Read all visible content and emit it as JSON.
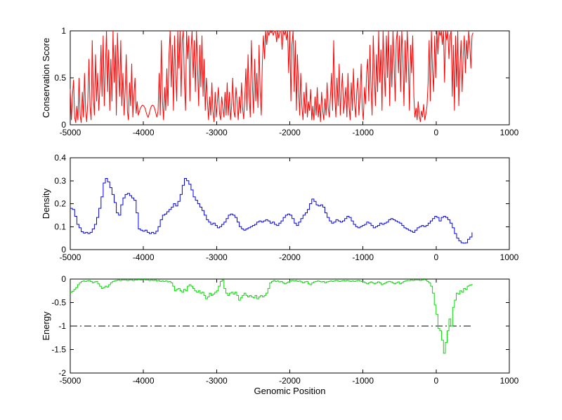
{
  "figure": {
    "background": "#ffffff",
    "xlabel": "Genomic Position",
    "x_range": [
      -5000,
      1000
    ],
    "data_x_end": 505
  },
  "chart_data": [
    {
      "type": "line",
      "name": "conservation",
      "ylabel": "Conservation Score",
      "xlabel": "",
      "xlim": [
        -5000,
        1000
      ],
      "ylim": [
        0,
        1
      ],
      "xticks": [
        -5000,
        -4000,
        -3000,
        -2000,
        -1000,
        0,
        1000
      ],
      "yticks": [
        0,
        0.5,
        1
      ],
      "line_color": "#ff0000",
      "step": false,
      "grid": false,
      "legend": null,
      "series": {
        "name": "conservation-score",
        "x_start": -5000,
        "x_step": 15,
        "y_scale": 0.01,
        "values": [
          38,
          5,
          30,
          48,
          8,
          2,
          20,
          5,
          50,
          10,
          2,
          35,
          8,
          55,
          15,
          3,
          25,
          70,
          20,
          5,
          90,
          30,
          10,
          75,
          25,
          55,
          15,
          40,
          85,
          30,
          95,
          20,
          60,
          100,
          35,
          80,
          15,
          70,
          25,
          100,
          45,
          85,
          10,
          98,
          60,
          30,
          90,
          20,
          55,
          10,
          35,
          75,
          15,
          5,
          45,
          20,
          65,
          8,
          30,
          50,
          12,
          25,
          10,
          14,
          18,
          20,
          21,
          20,
          18,
          14,
          10,
          8,
          12,
          17,
          20,
          21,
          20,
          17,
          12,
          8,
          15,
          55,
          10,
          90,
          25,
          5,
          40,
          15,
          60,
          20,
          75,
          100,
          40,
          85,
          15,
          95,
          55,
          25,
          100,
          60,
          100,
          30,
          90,
          100,
          45,
          15,
          100,
          70,
          95,
          25,
          80,
          100,
          50,
          90,
          35,
          100,
          60,
          20,
          85,
          40,
          95,
          30,
          70,
          15,
          50,
          25,
          5,
          30,
          10,
          45,
          15,
          3,
          35,
          8,
          25,
          40,
          12,
          5,
          30,
          18,
          8,
          35,
          10,
          45,
          10,
          35,
          5,
          20,
          50,
          15,
          8,
          40,
          25,
          5,
          30,
          12,
          45,
          18,
          6,
          28,
          60,
          15,
          75,
          30,
          8,
          90,
          40,
          12,
          70,
          25,
          55,
          18,
          85,
          35,
          10,
          65,
          95,
          70,
          100,
          85,
          100,
          95,
          100,
          98,
          100,
          95,
          100,
          100,
          88,
          100,
          92,
          100,
          100,
          80,
          100,
          96,
          100,
          90,
          100,
          55,
          100,
          25,
          85,
          100,
          35,
          90,
          15,
          75,
          40,
          10,
          55,
          20,
          5,
          35,
          12,
          45,
          8,
          25,
          15,
          38,
          5,
          20,
          5,
          30,
          10,
          40,
          8,
          22,
          3,
          35,
          15,
          5,
          28,
          10,
          45,
          18,
          8,
          30,
          55,
          15,
          90,
          30,
          8,
          50,
          20,
          65,
          10,
          35,
          55,
          12,
          25,
          40,
          8,
          55,
          20,
          5,
          45,
          15,
          60,
          25,
          8,
          35,
          50,
          10,
          30,
          65,
          18,
          5,
          40,
          22,
          55,
          70,
          25,
          85,
          40,
          10,
          95,
          55,
          20,
          75,
          35,
          100,
          45,
          80,
          15,
          100,
          60,
          30,
          95,
          50,
          100,
          20,
          85,
          40,
          100,
          70,
          25,
          90,
          100,
          55,
          95,
          35,
          100,
          75,
          20,
          90,
          45,
          100,
          65,
          15,
          85,
          55,
          95,
          30,
          8,
          18,
          5,
          25,
          10,
          3,
          15,
          8,
          22,
          5,
          12,
          20,
          45,
          90,
          25,
          100,
          60,
          35,
          95,
          50,
          100,
          75,
          100,
          95,
          100,
          85,
          100,
          45,
          100,
          90,
          100,
          70,
          95,
          100,
          30,
          85,
          15,
          95,
          40,
          100,
          20,
          60,
          90,
          35,
          75,
          95,
          55,
          90,
          70,
          100,
          85,
          60,
          95,
          98
        ]
      }
    },
    {
      "type": "line",
      "name": "density",
      "ylabel": "Density",
      "xlabel": "",
      "xlim": [
        -5000,
        1000
      ],
      "ylim": [
        0,
        0.4
      ],
      "xticks": [
        -5000,
        -4000,
        -3000,
        -2000,
        -1000,
        0,
        1000
      ],
      "yticks": [
        0,
        0.1,
        0.2,
        0.3,
        0.4
      ],
      "line_color": "#0000ee",
      "step": true,
      "grid": false,
      "legend": null,
      "series": {
        "name": "density",
        "x_start": -5000,
        "x_step": 30,
        "y_scale": 0.001,
        "values": [
          180,
          175,
          145,
          110,
          95,
          78,
          72,
          75,
          70,
          75,
          90,
          110,
          140,
          180,
          230,
          290,
          310,
          295,
          270,
          240,
          205,
          160,
          150,
          195,
          225,
          240,
          245,
          235,
          225,
          215,
          160,
          90,
          85,
          80,
          85,
          75,
          70,
          75,
          70,
          80,
          100,
          130,
          150,
          155,
          165,
          175,
          185,
          200,
          190,
          210,
          240,
          280,
          310,
          300,
          285,
          260,
          230,
          215,
          200,
          185,
          170,
          150,
          130,
          120,
          110,
          115,
          105,
          95,
          100,
          110,
          120,
          135,
          150,
          155,
          150,
          140,
          120,
          100,
          90,
          85,
          90,
          95,
          100,
          105,
          110,
          120,
          125,
          120,
          125,
          130,
          125,
          115,
          120,
          110,
          105,
          115,
          125,
          140,
          150,
          155,
          150,
          135,
          115,
          105,
          120,
          135,
          150,
          160,
          175,
          200,
          220,
          210,
          195,
          190,
          195,
          185,
          160,
          140,
          125,
          115,
          120,
          130,
          125,
          120,
          125,
          135,
          145,
          140,
          125,
          110,
          100,
          95,
          100,
          105,
          110,
          120,
          115,
          105,
          95,
          100,
          105,
          115,
          110,
          115,
          120,
          130,
          135,
          130,
          125,
          120,
          115,
          105,
          95,
          90,
          85,
          80,
          75,
          85,
          95,
          100,
          105,
          100,
          105,
          115,
          125,
          135,
          145,
          140,
          125,
          140,
          145,
          140,
          130,
          115,
          95,
          70,
          50,
          38,
          30,
          28,
          30,
          45,
          55,
          75
        ]
      }
    },
    {
      "type": "line",
      "name": "energy",
      "ylabel": "Energy",
      "xlabel": "Genomic Position",
      "xlim": [
        -5000,
        1000
      ],
      "ylim": [
        -2,
        0
      ],
      "xticks": [
        -5000,
        -4000,
        -3000,
        -2000,
        -1000,
        0,
        1000
      ],
      "yticks": [
        -2,
        -1.5,
        -1,
        -0.5,
        0
      ],
      "line_color": "#00dd00",
      "step": true,
      "grid": false,
      "legend": null,
      "reference_line": {
        "y": -1,
        "color": "#000000",
        "style": "dash-dot",
        "x_start": -5000,
        "x_end": 490
      },
      "series": {
        "name": "energy",
        "x_start": -5000,
        "x_step": 25,
        "y_scale": 0.01,
        "values": [
          -28,
          -26,
          -22,
          -18,
          -12,
          -8,
          -5,
          -4,
          -5,
          -4,
          -3,
          -5,
          -8,
          -6,
          -5,
          -10,
          -15,
          -20,
          -18,
          -15,
          -17,
          -12,
          -8,
          -5,
          -4,
          -3,
          -2,
          -3,
          -2,
          -2,
          -2,
          -3,
          -2,
          -2,
          -3,
          -2,
          -2,
          -1,
          -2,
          -2,
          -1,
          -2,
          -2,
          -3,
          -2,
          -3,
          -2,
          -4,
          -3,
          -5,
          -4,
          -5,
          -4,
          -6,
          -5,
          -8,
          -15,
          -25,
          -22,
          -20,
          -25,
          -28,
          -22,
          -25,
          -15,
          -12,
          -15,
          -20,
          -25,
          -28,
          -25,
          -30,
          -28,
          -35,
          -42,
          -38,
          -30,
          -35,
          -32,
          -28,
          -25,
          -15,
          -5,
          -2,
          -20,
          -30,
          -35,
          -30,
          -28,
          -32,
          -28,
          -35,
          -45,
          -40,
          -35,
          -30,
          -35,
          -38,
          -35,
          -38,
          -40,
          -35,
          -42,
          -38,
          -35,
          -38,
          -35,
          -30,
          -20,
          -8,
          -5,
          -3,
          -5,
          -4,
          -6,
          -5,
          -8,
          -10,
          -8,
          -6,
          -4,
          -3,
          -4,
          -3,
          -5,
          -4,
          -6,
          -8,
          -6,
          -5,
          -10,
          -12,
          -8,
          -6,
          -5,
          -4,
          -5,
          -6,
          -5,
          -8,
          -6,
          -5,
          -4,
          -5,
          -4,
          -3,
          -4,
          -5,
          -4,
          -3,
          -4,
          -3,
          -4,
          -5,
          -4,
          -5,
          -4,
          -3,
          -4,
          -5,
          -6,
          -8,
          -10,
          -8,
          -6,
          -8,
          -10,
          -8,
          -6,
          -8,
          -12,
          -10,
          -8,
          -6,
          -5,
          -6,
          -8,
          -10,
          -8,
          -6,
          -10,
          -8,
          -5,
          -4,
          -3,
          -3,
          -2,
          -3,
          -2,
          -2,
          -2,
          -3,
          -2,
          -1,
          -2,
          -5,
          -8,
          -15,
          -30,
          -55,
          -75,
          -105,
          -110,
          -130,
          -158,
          -135,
          -110,
          -85,
          -100,
          -60,
          -45,
          -30,
          -32,
          -25,
          -28,
          -20,
          -22,
          -15,
          -13,
          -12,
          -12
        ]
      }
    }
  ]
}
